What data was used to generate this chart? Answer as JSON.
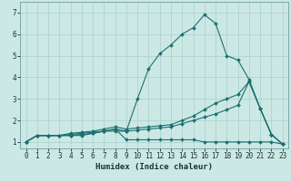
{
  "xlabel": "Humidex (Indice chaleur)",
  "xlim": [
    -0.5,
    23.5
  ],
  "ylim": [
    0.7,
    7.5
  ],
  "xticks": [
    0,
    1,
    2,
    3,
    4,
    5,
    6,
    7,
    8,
    9,
    10,
    11,
    12,
    13,
    14,
    15,
    16,
    17,
    18,
    19,
    20,
    21,
    22,
    23
  ],
  "yticks": [
    1,
    2,
    3,
    4,
    5,
    6,
    7
  ],
  "background_color": "#cce8e4",
  "grid_color": "#aacfcc",
  "line_color": "#1a7070",
  "lines": [
    [
      1.0,
      1.3,
      1.3,
      1.3,
      1.3,
      1.3,
      1.4,
      1.5,
      1.5,
      1.5,
      3.0,
      4.4,
      5.1,
      5.5,
      6.0,
      6.3,
      6.9,
      6.5,
      5.0,
      4.8,
      3.9,
      2.55,
      1.35,
      0.9
    ],
    [
      1.0,
      1.3,
      1.3,
      1.3,
      1.3,
      1.35,
      1.4,
      1.5,
      1.6,
      1.5,
      1.55,
      1.6,
      1.65,
      1.7,
      1.85,
      2.0,
      2.15,
      2.3,
      2.5,
      2.7,
      3.8,
      2.55,
      1.35,
      0.9
    ],
    [
      1.0,
      1.3,
      1.3,
      1.3,
      1.35,
      1.4,
      1.45,
      1.5,
      1.6,
      1.1,
      1.1,
      1.1,
      1.1,
      1.1,
      1.1,
      1.1,
      1.0,
      1.0,
      1.0,
      1.0,
      1.0,
      1.0,
      1.0,
      0.9
    ],
    [
      1.0,
      1.3,
      1.3,
      1.3,
      1.4,
      1.45,
      1.5,
      1.6,
      1.7,
      1.6,
      1.65,
      1.7,
      1.75,
      1.8,
      2.0,
      2.2,
      2.5,
      2.8,
      3.0,
      3.2,
      3.8,
      2.55,
      1.35,
      0.9
    ]
  ],
  "xlabel_fontsize": 6.5,
  "tick_fontsize": 5.5
}
